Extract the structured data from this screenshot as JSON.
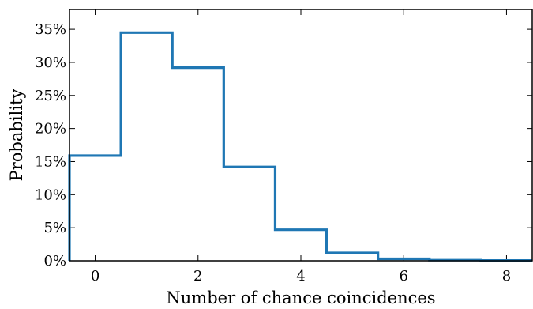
{
  "chart_data": {
    "type": "histogram-step",
    "title": "",
    "xlabel": "Number of chance coincidences",
    "ylabel": "Probability",
    "xlim": [
      -0.5,
      8.5
    ],
    "ylim": [
      0,
      0.38
    ],
    "bins": [
      {
        "x": 0,
        "value": 0.159
      },
      {
        "x": 1,
        "value": 0.345
      },
      {
        "x": 2,
        "value": 0.292
      },
      {
        "x": 3,
        "value": 0.142
      },
      {
        "x": 4,
        "value": 0.047
      },
      {
        "x": 5,
        "value": 0.012
      },
      {
        "x": 6,
        "value": 0.003
      },
      {
        "x": 7,
        "value": 0.001
      },
      {
        "x": 8,
        "value": 0.0005
      }
    ],
    "x_ticks": [
      {
        "value": 0,
        "label": "0"
      },
      {
        "value": 2,
        "label": "2"
      },
      {
        "value": 4,
        "label": "4"
      },
      {
        "value": 6,
        "label": "6"
      },
      {
        "value": 8,
        "label": "8"
      }
    ],
    "y_ticks": [
      {
        "value": 0.0,
        "label": "0%"
      },
      {
        "value": 0.05,
        "label": "5%"
      },
      {
        "value": 0.1,
        "label": "10%"
      },
      {
        "value": 0.15,
        "label": "15%"
      },
      {
        "value": 0.2,
        "label": "20%"
      },
      {
        "value": 0.25,
        "label": "25%"
      },
      {
        "value": 0.3,
        "label": "30%"
      },
      {
        "value": 0.35,
        "label": "35%"
      }
    ],
    "grid": false,
    "legend": "none",
    "line_color": "#1f77b4",
    "axis_color": "#000000"
  }
}
